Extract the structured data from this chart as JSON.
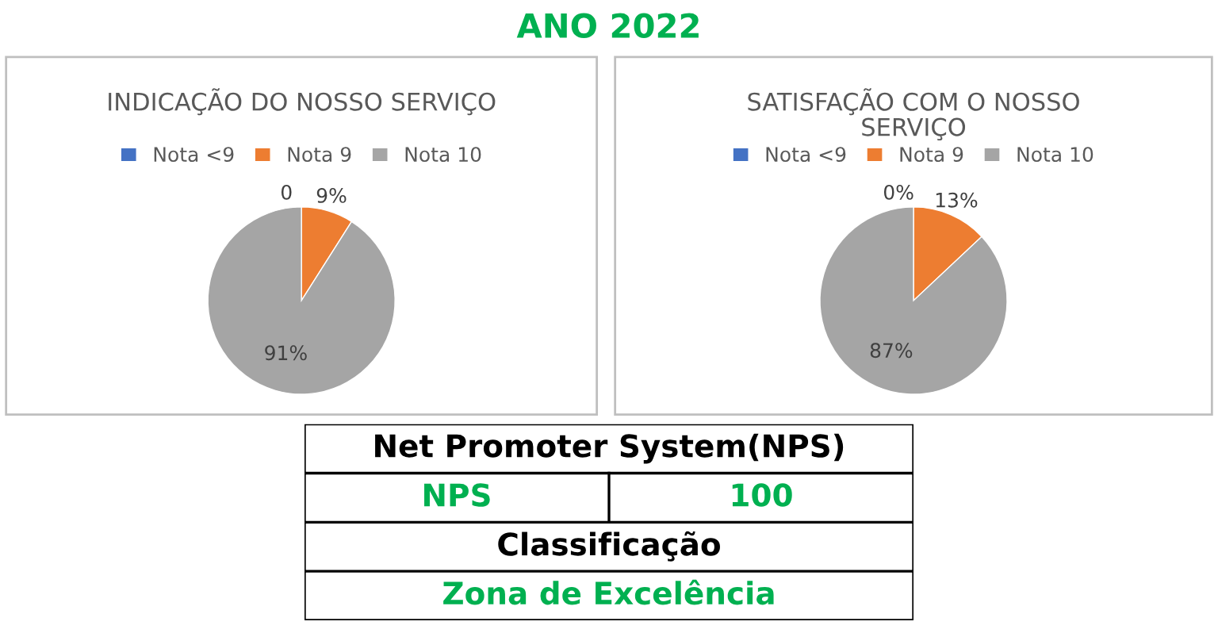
{
  "chart_data": [
    {
      "type": "other",
      "title": "ANO 2022",
      "color": "#00b050"
    },
    {
      "type": "pie",
      "title": "INDICAÇÃO DO NOSSO SERVIÇO",
      "categories": [
        "Nota <9",
        "Nota 9",
        "Nota 10"
      ],
      "values": [
        0,
        9,
        91
      ],
      "colors": [
        "#4472c4",
        "#ed7d31",
        "#a5a5a5"
      ],
      "value_labels": [
        "0",
        "9%",
        "91%"
      ],
      "legend": "top"
    },
    {
      "type": "pie",
      "title": "SATISFAÇÃO COM O NOSSO\nSERVIÇO",
      "categories": [
        "Nota <9",
        "Nota 9",
        "Nota 10"
      ],
      "values": [
        0,
        13,
        87
      ],
      "colors": [
        "#4472c4",
        "#ed7d31",
        "#a5a5a5"
      ],
      "value_labels": [
        "0%",
        "13%",
        "87%"
      ],
      "legend": "top"
    },
    {
      "type": "other",
      "cell_labels": [
        [
          "Net Promoter System(NPS)"
        ],
        [
          "NPS",
          "100"
        ],
        [
          "Classificação"
        ],
        [
          "Zona de Excelência"
        ]
      ],
      "colors": [
        "#000000",
        "#00b050",
        "#000000",
        "#00b050"
      ]
    }
  ]
}
